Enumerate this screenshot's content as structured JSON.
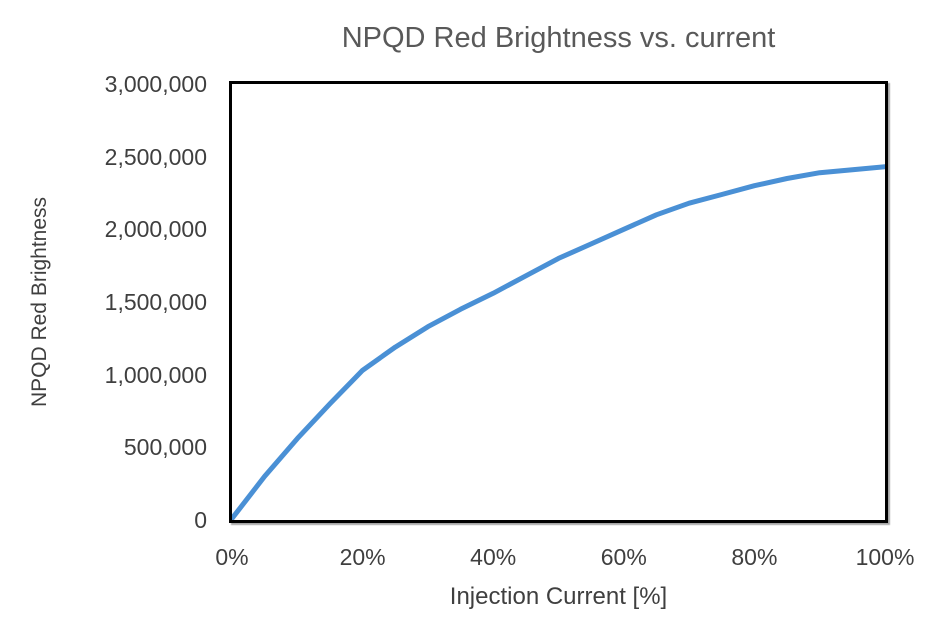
{
  "chart": {
    "title": "NPQD Red Brightness vs. current",
    "x_axis": {
      "title": "Injection Current [%]",
      "tick_labels": [
        "0%",
        "20%",
        "40%",
        "60%",
        "80%",
        "100%"
      ]
    },
    "y_axis": {
      "title": "NPQD Red Brightness",
      "tick_labels": [
        "0",
        "500,000",
        "1,000,000",
        "1,500,000",
        "2,000,000",
        "2,500,000",
        "3,000,000"
      ]
    },
    "colors": {
      "line": "#4a90d5",
      "title_text": "#595959",
      "axis_text": "#3f3f3f",
      "plot_border": "#000000",
      "background": "#ffffff"
    }
  },
  "chart_data": {
    "type": "line",
    "title": "NPQD Red Brightness vs. current",
    "xlabel": "Injection Current [%]",
    "ylabel": "NPQD Red Brightness",
    "x": [
      0,
      5,
      10,
      15,
      20,
      25,
      30,
      35,
      40,
      45,
      50,
      55,
      60,
      65,
      70,
      75,
      80,
      85,
      90,
      95,
      100
    ],
    "y": [
      10000,
      300000,
      560000,
      800000,
      1030000,
      1190000,
      1330000,
      1450000,
      1560000,
      1680000,
      1800000,
      1900000,
      2000000,
      2100000,
      2180000,
      2240000,
      2300000,
      2350000,
      2390000,
      2410000,
      2430000
    ],
    "xlim": [
      0,
      100
    ],
    "ylim": [
      0,
      3000000
    ],
    "x_tick_format": "percent",
    "grid": false,
    "legend": "none",
    "line_color": "#4a90d5",
    "line_width": 5
  }
}
